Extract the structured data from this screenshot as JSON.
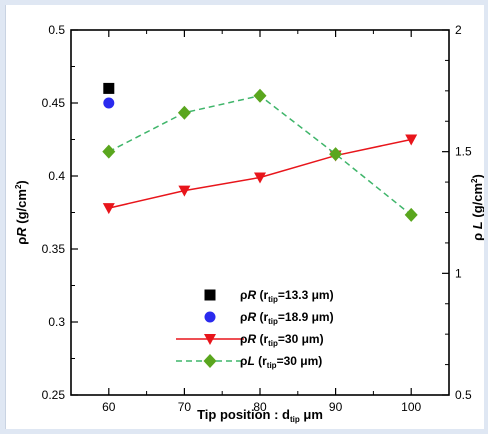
{
  "chart_data": {
    "type": "scatter",
    "x": {
      "label": "Tip position  : d",
      "label_sub": "tip",
      "label_unit": " μm",
      "lim": [
        55,
        105
      ],
      "ticks": [
        60,
        70,
        80,
        90,
        100
      ],
      "tick_labels": [
        "60",
        "70",
        "80",
        "90",
        "100"
      ]
    },
    "y_left": {
      "label_prefix": "ρ",
      "label_italic": "R",
      "label_suffix": "  (g/cm",
      "label_sup": "2",
      "label_close": ")",
      "lim": [
        0.25,
        0.5
      ],
      "ticks": [
        0.25,
        0.3,
        0.35,
        0.4,
        0.45,
        0.5
      ],
      "tick_labels": [
        "0.25",
        "0.3",
        "0.35",
        "0.4",
        "0.45",
        "0.5"
      ]
    },
    "y_right": {
      "label_prefix": "ρ ",
      "label_italic": "L",
      "label_suffix": " (g/cm",
      "label_sup": "2",
      "label_close": ")",
      "lim": [
        0.5,
        2
      ],
      "ticks": [
        0.5,
        1,
        1.5,
        2
      ],
      "tick_labels": [
        "0.5",
        "1",
        "1.5",
        "2"
      ]
    },
    "legend_position": "bottom-right",
    "series": [
      {
        "name_prefix": "ρ",
        "name_italic": "R",
        "name_mid": " (r",
        "name_sub": "tip",
        "name_rest": "=13.3 μm)",
        "axis": "left",
        "marker": "square",
        "line": "none",
        "color": "#000000",
        "x": [
          60
        ],
        "y": [
          0.46
        ]
      },
      {
        "name_prefix": "ρ",
        "name_italic": "R",
        "name_mid": " (r",
        "name_sub": "tip",
        "name_rest": "=18.9 μm)",
        "axis": "left",
        "marker": "circle",
        "line": "none",
        "color": "#2a2aee",
        "x": [
          60
        ],
        "y": [
          0.45
        ]
      },
      {
        "name_prefix": "ρ",
        "name_italic": "R",
        "name_mid": " (r",
        "name_sub": "tip",
        "name_rest": "=30 μm)",
        "axis": "left",
        "marker": "triangle-down",
        "line": "solid",
        "color": "#e8151b",
        "x": [
          60,
          70,
          80,
          90,
          100
        ],
        "y": [
          0.378,
          0.39,
          0.399,
          0.414,
          0.425
        ]
      },
      {
        "name_prefix": "ρ",
        "name_italic": "L",
        "name_mid": " (r",
        "name_sub": "tip",
        "name_rest": "=30 μm)",
        "axis": "right",
        "marker": "diamond",
        "line": "dashed",
        "color": "#2c9a3a",
        "line_color": "#3fb56a",
        "marker_color": "#5aa61e",
        "x": [
          60,
          70,
          80,
          90,
          100
        ],
        "y": [
          1.5,
          1.66,
          1.73,
          1.49,
          1.24
        ]
      }
    ]
  }
}
